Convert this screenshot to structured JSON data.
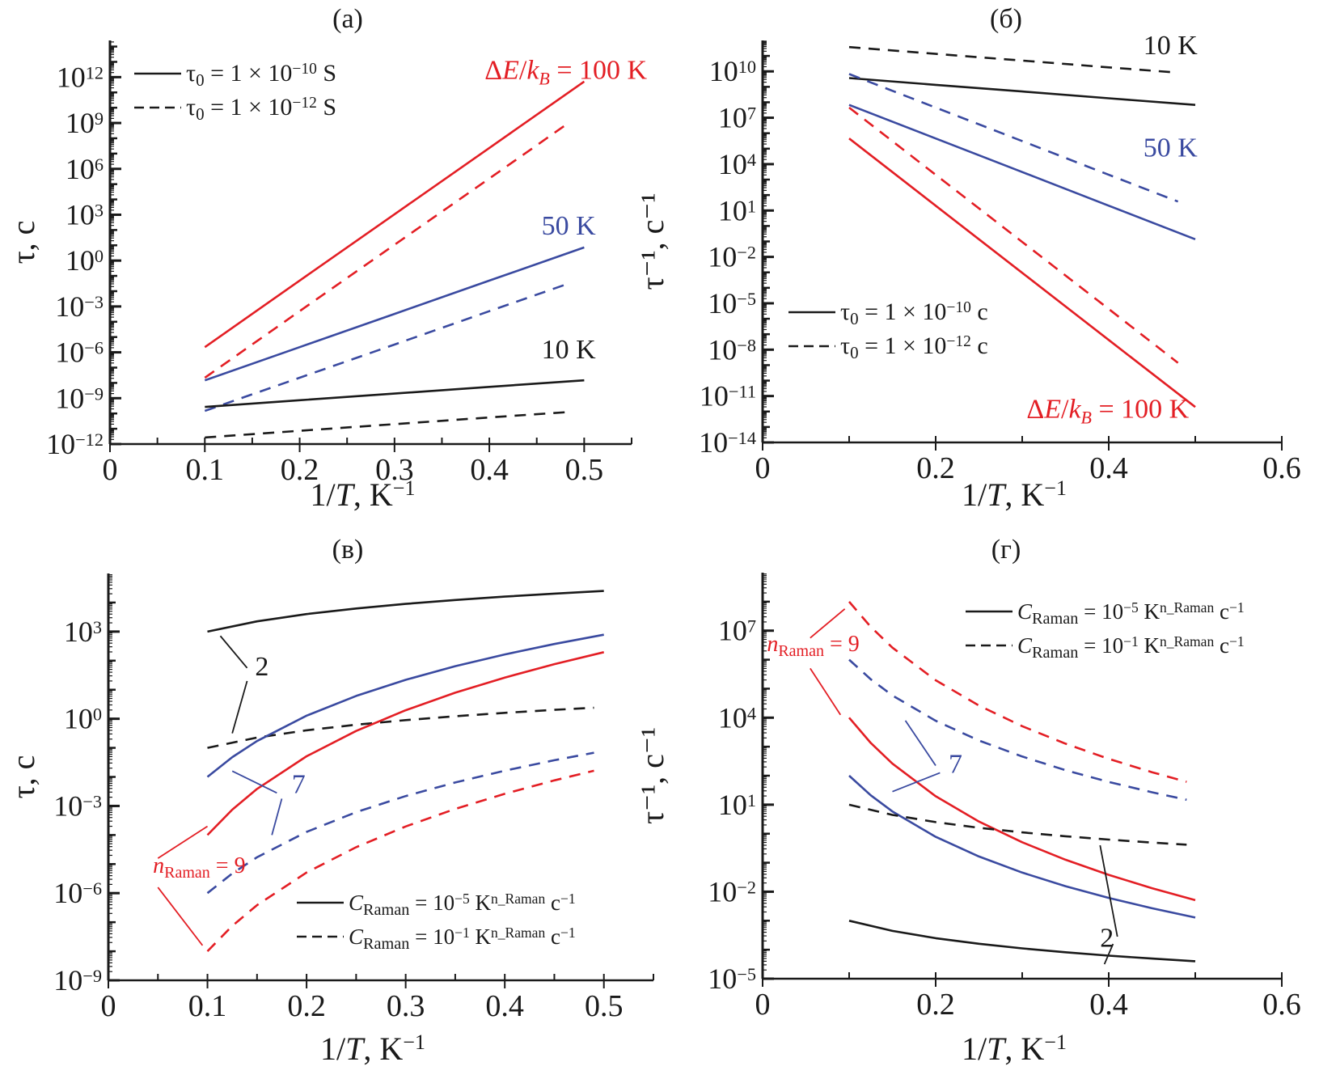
{
  "colors": {
    "black": "#1a1a1a",
    "blue": "#3a4aa0",
    "red": "#e31e24"
  },
  "chart_data": [
    {
      "id": "a",
      "type": "line",
      "title": "(a)",
      "xlabel": "1/T, K",
      "xlabel_sup": "−1",
      "ylabel": "τ, c",
      "yscale": "log",
      "xlim": [
        0,
        0.55
      ],
      "ylim_log10": [
        -12,
        14.4
      ],
      "xticks": [
        0,
        0.1,
        0.2,
        0.3,
        0.4,
        0.5
      ],
      "xtick_labels": [
        "0",
        "0.1",
        "0.2",
        "0.3",
        "0.4",
        "0.5"
      ],
      "yticks_log10": [
        -12,
        -9,
        -6,
        -3,
        0,
        3,
        6,
        9,
        12
      ],
      "ytick_labels": [
        "10^−12",
        "10^−9",
        "10^−6",
        "10^−3",
        "10^0",
        "10^3",
        "10^6",
        "10^9",
        "10^12"
      ],
      "legend": {
        "placement": "top-left",
        "entries": [
          {
            "style": "solid",
            "label": "τ₀ = 1 × 10^−10 S"
          },
          {
            "style": "dashed",
            "label": "τ₀ = 1 × 10^−12 S"
          }
        ]
      },
      "annotations": [
        {
          "text": "ΔE/k_B = 100 K",
          "color": "red",
          "at": [
            0.395,
            11.9
          ]
        },
        {
          "text": "50 K",
          "color": "blue",
          "at": [
            0.455,
            1.7
          ]
        },
        {
          "text": "10 K",
          "color": "black",
          "at": [
            0.455,
            -6.4
          ]
        }
      ],
      "leaders": [],
      "series": [
        {
          "name": "ΔE/kB=100 K, τ0=1e-10",
          "color": "red",
          "style": "solid",
          "x": [
            0.1,
            0.2,
            0.3,
            0.4,
            0.5
          ],
          "log10y": [
            -5.66,
            -1.31,
            3.03,
            7.37,
            11.71
          ]
        },
        {
          "name": "ΔE/kB=100 K, τ0=1e-12",
          "color": "red",
          "style": "dashed",
          "x": [
            0.1,
            0.2,
            0.3,
            0.4,
            0.48
          ],
          "log10y": [
            -7.66,
            -3.31,
            1.03,
            5.37,
            8.85
          ]
        },
        {
          "name": "ΔE/kB=50 K, τ0=1e-10",
          "color": "blue",
          "style": "solid",
          "x": [
            0.1,
            0.2,
            0.3,
            0.4,
            0.5
          ],
          "log10y": [
            -7.83,
            -5.66,
            -3.49,
            -1.31,
            0.86
          ]
        },
        {
          "name": "ΔE/kB=50 K, τ0=1e-12",
          "color": "blue",
          "style": "dashed",
          "x": [
            0.1,
            0.2,
            0.3,
            0.4,
            0.48
          ],
          "log10y": [
            -9.83,
            -7.66,
            -5.49,
            -3.31,
            -1.58
          ]
        },
        {
          "name": "ΔE/kB=10 K, τ0=1e-10",
          "color": "black",
          "style": "solid",
          "x": [
            0.1,
            0.2,
            0.3,
            0.4,
            0.5
          ],
          "log10y": [
            -9.57,
            -9.13,
            -8.7,
            -8.26,
            -7.83
          ]
        },
        {
          "name": "ΔE/kB=10 K, τ0=1e-12",
          "color": "black",
          "style": "dashed",
          "x": [
            0.1,
            0.2,
            0.3,
            0.4,
            0.48
          ],
          "log10y": [
            -11.57,
            -11.13,
            -10.7,
            -10.26,
            -9.92
          ]
        }
      ]
    },
    {
      "id": "b",
      "type": "line",
      "title": "(б)",
      "xlabel": "1/T, K",
      "xlabel_sup": "−1",
      "ylabel": "τ⁻¹, c⁻¹",
      "yscale": "log",
      "xlim": [
        0,
        0.6
      ],
      "ylim_log10": [
        -14,
        12
      ],
      "xticks": [
        0,
        0.2,
        0.4,
        0.6
      ],
      "xtick_labels": [
        "0",
        "0.2",
        "0.4",
        "0.6"
      ],
      "yticks_log10": [
        -14,
        -11,
        -8,
        -5,
        -2,
        1,
        4,
        7,
        10
      ],
      "ytick_labels": [
        "10^−14",
        "10^−11",
        "10^−8",
        "10^−5",
        "10^−2",
        "10^1",
        "10^4",
        "10^7",
        "10^10"
      ],
      "legend": {
        "placement": "lower-left",
        "entries": [
          {
            "style": "solid",
            "label": "τ₀ = 1 × 10^−10 c"
          },
          {
            "style": "dashed",
            "label": "τ₀ = 1 × 10^−12 c"
          }
        ]
      },
      "annotations": [
        {
          "text": "10 K",
          "color": "black",
          "at": [
            0.44,
            11.1
          ]
        },
        {
          "text": "50 K",
          "color": "blue",
          "at": [
            0.44,
            4.5
          ]
        },
        {
          "text": "ΔE/k_B = 100 K",
          "color": "red",
          "at": [
            0.305,
            -12.4
          ]
        }
      ],
      "leaders": [],
      "series": [
        {
          "name": "10 K, τ0=1e-12",
          "color": "black",
          "style": "dashed",
          "x": [
            0.1,
            0.2,
            0.3,
            0.4,
            0.48
          ],
          "log10y": [
            11.57,
            11.13,
            10.7,
            10.26,
            9.92
          ]
        },
        {
          "name": "10 K, τ0=1e-10",
          "color": "black",
          "style": "solid",
          "x": [
            0.1,
            0.2,
            0.3,
            0.4,
            0.5
          ],
          "log10y": [
            9.57,
            9.13,
            8.7,
            8.26,
            7.83
          ]
        },
        {
          "name": "50 K, τ0=1e-12",
          "color": "blue",
          "style": "dashed",
          "x": [
            0.1,
            0.2,
            0.3,
            0.4,
            0.48
          ],
          "log10y": [
            9.83,
            7.66,
            5.49,
            3.31,
            1.58
          ]
        },
        {
          "name": "50 K, τ0=1e-10",
          "color": "blue",
          "style": "solid",
          "x": [
            0.1,
            0.2,
            0.3,
            0.4,
            0.5
          ],
          "log10y": [
            7.83,
            5.66,
            3.49,
            1.31,
            -0.86
          ]
        },
        {
          "name": "100 K, τ0=1e-12",
          "color": "red",
          "style": "dashed",
          "x": [
            0.1,
            0.2,
            0.3,
            0.4,
            0.48
          ],
          "log10y": [
            7.66,
            3.31,
            -1.03,
            -5.37,
            -8.85
          ]
        },
        {
          "name": "100 K, τ0=1e-10",
          "color": "red",
          "style": "solid",
          "x": [
            0.1,
            0.2,
            0.3,
            0.4,
            0.5
          ],
          "log10y": [
            5.66,
            1.31,
            -3.03,
            -7.37,
            -11.71
          ]
        }
      ]
    },
    {
      "id": "c",
      "type": "line",
      "title": "(в)",
      "xlabel": "1/T, K",
      "xlabel_sup": "−1",
      "ylabel": "τ, c",
      "yscale": "log",
      "xlim": [
        0,
        0.55
      ],
      "ylim_log10": [
        -9,
        5
      ],
      "xticks": [
        0,
        0.1,
        0.2,
        0.3,
        0.4,
        0.5
      ],
      "xtick_labels": [
        "0",
        "0.1",
        "0.2",
        "0.3",
        "0.4",
        "0.5"
      ],
      "yticks_log10": [
        -9,
        -6,
        -3,
        0,
        3
      ],
      "ytick_labels": [
        "10^−9",
        "10^−6",
        "10^−3",
        "10^0",
        "10^3"
      ],
      "legend": {
        "placement": "lower-right",
        "entries": [
          {
            "style": "solid",
            "label": "C_Raman = 10^−5 K^n_Raman c^−1"
          },
          {
            "style": "dashed",
            "label": "C_Raman = 10^−1 K^n_Raman c^−1"
          }
        ]
      },
      "annotations": [
        {
          "text": "2",
          "color": "black",
          "at": [
            0.148,
            1.5
          ]
        },
        {
          "text": "7",
          "color": "blue",
          "at": [
            0.185,
            -2.55
          ]
        },
        {
          "text": "n_Raman = 9",
          "color": "red",
          "at": [
            0.045,
            -5.3
          ]
        }
      ],
      "leaders": [
        {
          "color": "black",
          "from": [
            0.113,
            2.85
          ],
          "to": [
            0.14,
            1.75
          ]
        },
        {
          "color": "black",
          "from": [
            0.14,
            1.3
          ],
          "to": [
            0.125,
            -0.5
          ]
        },
        {
          "color": "blue",
          "from": [
            0.125,
            -1.8
          ],
          "to": [
            0.17,
            -2.55
          ]
        },
        {
          "color": "blue",
          "from": [
            0.175,
            -2.75
          ],
          "to": [
            0.165,
            -4.0
          ]
        },
        {
          "color": "red",
          "from": [
            0.05,
            -4.8
          ],
          "to": [
            0.1,
            -3.7
          ]
        },
        {
          "color": "red",
          "from": [
            0.05,
            -5.8
          ],
          "to": [
            0.095,
            -7.8
          ]
        }
      ],
      "series": [
        {
          "name": "n=2, C=1e-5",
          "color": "black",
          "style": "solid",
          "x": [
            0.1,
            0.15,
            0.2,
            0.25,
            0.3,
            0.35,
            0.4,
            0.45,
            0.5
          ],
          "log10y": [
            3.0,
            3.352,
            3.602,
            3.796,
            3.954,
            4.088,
            4.204,
            4.306,
            4.398
          ]
        },
        {
          "name": "n=2, C=1e-1",
          "color": "black",
          "style": "dashed",
          "x": [
            0.1,
            0.15,
            0.2,
            0.25,
            0.3,
            0.35,
            0.4,
            0.45,
            0.49
          ],
          "log10y": [
            -1.0,
            -0.648,
            -0.398,
            -0.204,
            -0.046,
            0.088,
            0.204,
            0.306,
            0.38
          ]
        },
        {
          "name": "n=7, C=1e-5",
          "color": "blue",
          "style": "solid",
          "x": [
            0.1,
            0.125,
            0.15,
            0.2,
            0.25,
            0.3,
            0.35,
            0.4,
            0.45,
            0.5
          ],
          "log10y": [
            -2.0,
            -1.322,
            -0.767,
            0.107,
            0.786,
            1.34,
            1.809,
            2.214,
            2.572,
            2.893
          ]
        },
        {
          "name": "n=7, C=1e-1",
          "color": "blue",
          "style": "dashed",
          "x": [
            0.1,
            0.125,
            0.15,
            0.2,
            0.25,
            0.3,
            0.35,
            0.4,
            0.45,
            0.49
          ],
          "log10y": [
            -6.0,
            -5.322,
            -4.767,
            -3.893,
            -3.214,
            -2.66,
            -2.191,
            -1.786,
            -1.428,
            -1.168
          ]
        },
        {
          "name": "n=9, C=1e-5",
          "color": "red",
          "style": "solid",
          "x": [
            0.1,
            0.125,
            0.15,
            0.2,
            0.25,
            0.3,
            0.35,
            0.4,
            0.45,
            0.5
          ],
          "log10y": [
            -4.0,
            -3.128,
            -2.415,
            -1.291,
            -0.419,
            0.294,
            0.897,
            1.419,
            1.879,
            2.291
          ]
        },
        {
          "name": "n=9, C=1e-1",
          "color": "red",
          "style": "dashed",
          "x": [
            0.1,
            0.125,
            0.15,
            0.2,
            0.25,
            0.3,
            0.35,
            0.4,
            0.45,
            0.49
          ],
          "log10y": [
            -8.0,
            -7.128,
            -6.415,
            -5.291,
            -4.419,
            -3.706,
            -3.103,
            -2.581,
            -2.121,
            -1.788
          ]
        }
      ]
    },
    {
      "id": "d",
      "type": "line",
      "title": "(г)",
      "xlabel": "1/T, K",
      "xlabel_sup": "−1",
      "ylabel": "τ⁻¹, c⁻¹",
      "yscale": "log",
      "xlim": [
        0,
        0.6
      ],
      "ylim_log10": [
        -5,
        9
      ],
      "xticks": [
        0,
        0.2,
        0.4,
        0.6
      ],
      "xtick_labels": [
        "0",
        "0.2",
        "0.4",
        "0.6"
      ],
      "yticks_log10": [
        -5,
        -2,
        1,
        4,
        7
      ],
      "ytick_labels": [
        "10^−5",
        "10^−2",
        "10^1",
        "10^4",
        "10^7"
      ],
      "legend": {
        "placement": "top-right",
        "entries": [
          {
            "style": "solid",
            "label": "C_Raman = 10^−5 K^n_Raman c^−1"
          },
          {
            "style": "dashed",
            "label": "C_Raman = 10^−1 K^n_Raman c^−1"
          }
        ]
      },
      "annotations": [
        {
          "text": "n_Raman = 9",
          "color": "red",
          "at": [
            0.005,
            6.3
          ]
        },
        {
          "text": "7",
          "color": "blue",
          "at": [
            0.215,
            2.1
          ]
        },
        {
          "text": "2",
          "color": "black",
          "at": [
            0.39,
            -3.9
          ]
        }
      ],
      "leaders": [
        {
          "color": "red",
          "from": [
            0.055,
            6.75
          ],
          "to": [
            0.095,
            7.75
          ]
        },
        {
          "color": "red",
          "from": [
            0.055,
            5.7
          ],
          "to": [
            0.09,
            4.1
          ]
        },
        {
          "color": "blue",
          "from": [
            0.165,
            3.9
          ],
          "to": [
            0.2,
            2.35
          ]
        },
        {
          "color": "blue",
          "from": [
            0.205,
            2.1
          ],
          "to": [
            0.15,
            1.45
          ]
        },
        {
          "color": "black",
          "from": [
            0.39,
            -0.4
          ],
          "to": [
            0.41,
            -3.55
          ]
        },
        {
          "color": "black",
          "from": [
            0.405,
            -3.8
          ],
          "to": [
            0.395,
            -4.5
          ]
        }
      ],
      "series": [
        {
          "name": "n=9, C=1e-1",
          "color": "red",
          "style": "dashed",
          "x": [
            0.1,
            0.125,
            0.15,
            0.2,
            0.25,
            0.3,
            0.35,
            0.4,
            0.45,
            0.49
          ],
          "log10y": [
            8.0,
            7.128,
            6.415,
            5.291,
            4.419,
            3.706,
            3.103,
            2.581,
            2.121,
            1.788
          ]
        },
        {
          "name": "n=7, C=1e-1",
          "color": "blue",
          "style": "dashed",
          "x": [
            0.1,
            0.125,
            0.15,
            0.2,
            0.25,
            0.3,
            0.35,
            0.4,
            0.45,
            0.49
          ],
          "log10y": [
            6.0,
            5.322,
            4.767,
            3.893,
            3.214,
            2.66,
            2.191,
            1.786,
            1.428,
            1.168
          ]
        },
        {
          "name": "n=9, C=1e-5",
          "color": "red",
          "style": "solid",
          "x": [
            0.1,
            0.125,
            0.15,
            0.2,
            0.25,
            0.3,
            0.35,
            0.4,
            0.45,
            0.5
          ],
          "log10y": [
            4.0,
            3.128,
            2.415,
            1.291,
            0.419,
            -0.294,
            -0.897,
            -1.419,
            -1.879,
            -2.291
          ]
        },
        {
          "name": "n=7, C=1e-5",
          "color": "blue",
          "style": "solid",
          "x": [
            0.1,
            0.125,
            0.15,
            0.2,
            0.25,
            0.3,
            0.35,
            0.4,
            0.45,
            0.5
          ],
          "log10y": [
            2.0,
            1.322,
            0.767,
            -0.107,
            -0.786,
            -1.34,
            -1.809,
            -2.214,
            -2.572,
            -2.893
          ]
        },
        {
          "name": "n=2, C=1e-1",
          "color": "black",
          "style": "dashed",
          "x": [
            0.1,
            0.15,
            0.2,
            0.25,
            0.3,
            0.35,
            0.4,
            0.45,
            0.49
          ],
          "log10y": [
            1.0,
            0.648,
            0.398,
            0.204,
            0.046,
            -0.088,
            -0.204,
            -0.306,
            -0.38
          ]
        },
        {
          "name": "n=2, C=1e-5",
          "color": "black",
          "style": "solid",
          "x": [
            0.1,
            0.15,
            0.2,
            0.25,
            0.3,
            0.35,
            0.4,
            0.45,
            0.5
          ],
          "log10y": [
            -3.0,
            -3.352,
            -3.602,
            -3.796,
            -3.954,
            -4.088,
            -4.204,
            -4.306,
            -4.398
          ]
        }
      ]
    }
  ]
}
